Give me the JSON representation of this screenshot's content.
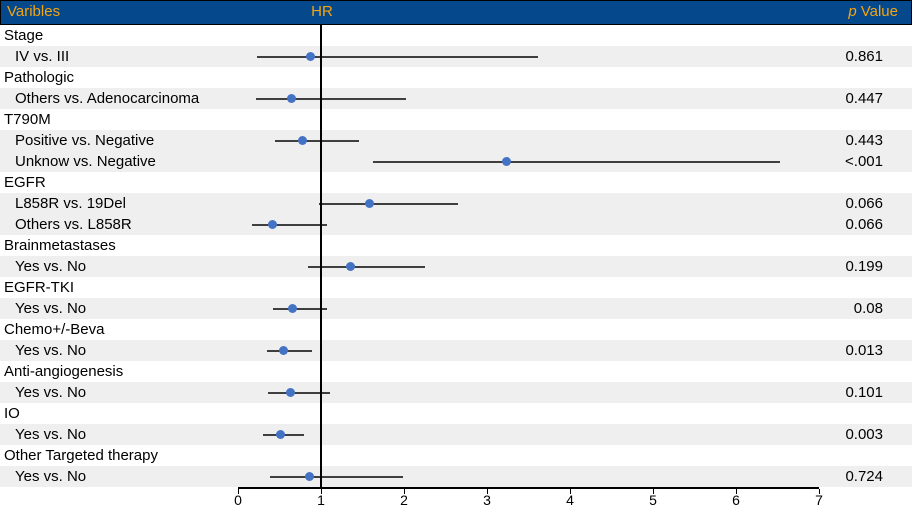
{
  "header": {
    "variables_label": "Varibles",
    "hr_label": "HR",
    "p_label_italic": "p",
    "p_label_rest": "Value"
  },
  "colors": {
    "header_bg": "#05498C",
    "header_text": "#F2A413",
    "row_shade": "#EFEFEF",
    "ci_line": "#3F3F3F",
    "dot": "#4472C4",
    "axis": "#000000"
  },
  "chart_data": {
    "type": "forest",
    "xlabel": "HR",
    "xlim": [
      0,
      7
    ],
    "ticks": [
      0,
      1,
      2,
      3,
      4,
      5,
      6,
      7
    ],
    "reference_line": 1,
    "grid": false,
    "rows": [
      {
        "label": "Stage",
        "kind": "group",
        "shaded": false
      },
      {
        "label": "IV vs. III",
        "kind": "item",
        "shaded": true,
        "hr": 0.87,
        "ci_low": 0.23,
        "ci_high": 3.61,
        "p": "0.861"
      },
      {
        "label": "Pathologic",
        "kind": "group",
        "shaded": false
      },
      {
        "label": "Others vs.  Adenocarcinoma",
        "kind": "item",
        "shaded": true,
        "hr": 0.65,
        "ci_low": 0.22,
        "ci_high": 2.03,
        "p": "0.447"
      },
      {
        "label": "T790M",
        "kind": "group",
        "shaded": false
      },
      {
        "label": "Positive vs. Negative",
        "kind": "item",
        "shaded": true,
        "hr": 0.78,
        "ci_low": 0.45,
        "ci_high": 1.46,
        "p": "0.443"
      },
      {
        "label": "Unknow vs. Negative",
        "kind": "item",
        "shaded": true,
        "hr": 3.23,
        "ci_low": 1.63,
        "ci_high": 6.53,
        "p": "<.001"
      },
      {
        "label": "EGFR",
        "kind": "group",
        "shaded": false
      },
      {
        "label": "L858R vs. 19Del",
        "kind": "item",
        "shaded": true,
        "hr": 1.59,
        "ci_low": 0.97,
        "ci_high": 2.65,
        "p": "0.066"
      },
      {
        "label": "Others vs. L858R",
        "kind": "item",
        "shaded": true,
        "hr": 0.42,
        "ci_low": 0.17,
        "ci_high": 1.07,
        "p": "0.066"
      },
      {
        "label": "Brainmetastases",
        "kind": "group",
        "shaded": false
      },
      {
        "label": "Yes vs. No",
        "kind": "item",
        "shaded": true,
        "hr": 1.36,
        "ci_low": 0.84,
        "ci_high": 2.25,
        "p": "0.199"
      },
      {
        "label": "EGFR-TKI",
        "kind": "group",
        "shaded": false
      },
      {
        "label": "Yes vs. No",
        "kind": "item",
        "shaded": true,
        "hr": 0.66,
        "ci_low": 0.42,
        "ci_high": 1.07,
        "p": "0.08"
      },
      {
        "label": "Chemo+/-Beva",
        "kind": "group",
        "shaded": false
      },
      {
        "label": "Yes vs. No",
        "kind": "item",
        "shaded": true,
        "hr": 0.55,
        "ci_low": 0.35,
        "ci_high": 0.89,
        "p": "0.013"
      },
      {
        "label": "Anti-angiogenesis",
        "kind": "group",
        "shaded": false
      },
      {
        "label": "Yes vs. No",
        "kind": "item",
        "shaded": true,
        "hr": 0.63,
        "ci_low": 0.36,
        "ci_high": 1.11,
        "p": "0.101"
      },
      {
        "label": "IO",
        "kind": "group",
        "shaded": false
      },
      {
        "label": "Yes vs. No",
        "kind": "item",
        "shaded": true,
        "hr": 0.51,
        "ci_low": 0.3,
        "ci_high": 0.8,
        "p": "0.003"
      },
      {
        "label": "Other Targeted therapy",
        "kind": "group",
        "shaded": false
      },
      {
        "label": "Yes vs. No",
        "kind": "item",
        "shaded": true,
        "hr": 0.86,
        "ci_low": 0.39,
        "ci_high": 1.99,
        "p": "0.724"
      }
    ]
  }
}
